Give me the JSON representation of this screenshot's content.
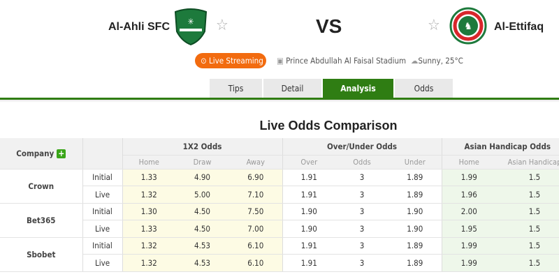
{
  "match": {
    "home_team": "Al-Ahli SFC",
    "away_team": "Al-Ettifaq",
    "vs": "VS",
    "live_label": "Live Streaming",
    "stadium": "Prince Abdullah Al Faisal Stadium",
    "weather": "Sunny, 25°C",
    "accent": "#2f7d13",
    "live_color": "#f26b0f"
  },
  "tabs": [
    {
      "label": "Tips"
    },
    {
      "label": "Detail"
    },
    {
      "label": "Analysis",
      "active": true
    },
    {
      "label": "Odds"
    }
  ],
  "section_title": "Live Odds Comparison",
  "table": {
    "company_label": "Company",
    "groups": [
      "1X2 Odds",
      "Over/Under Odds",
      "Asian Handicap Odds"
    ],
    "subheaders": [
      "Home",
      "Draw",
      "Away",
      "Over",
      "Odds",
      "Under",
      "Home",
      "Asian Handicap"
    ],
    "companies": [
      {
        "name": "Crown",
        "rows": [
          {
            "type": "Initial",
            "v": [
              "1.33",
              "4.90",
              "6.90",
              "1.91",
              "3",
              "1.89",
              "1.99",
              "1.5"
            ]
          },
          {
            "type": "Live",
            "v": [
              "1.32",
              "5.00",
              "7.10",
              "1.91",
              "3",
              "1.89",
              "1.96",
              "1.5"
            ]
          }
        ]
      },
      {
        "name": "Bet365",
        "rows": [
          {
            "type": "Initial",
            "v": [
              "1.30",
              "4.50",
              "7.50",
              "1.90",
              "3",
              "1.90",
              "2.00",
              "1.5"
            ]
          },
          {
            "type": "Live",
            "v": [
              "1.33",
              "4.50",
              "7.00",
              "1.90",
              "3",
              "1.90",
              "1.95",
              "1.5"
            ]
          }
        ]
      },
      {
        "name": "Sbobet",
        "rows": [
          {
            "type": "Initial",
            "v": [
              "1.32",
              "4.53",
              "6.10",
              "1.91",
              "3",
              "1.89",
              "1.99",
              "1.5"
            ]
          },
          {
            "type": "Live",
            "v": [
              "1.32",
              "4.53",
              "6.10",
              "1.91",
              "3",
              "1.89",
              "1.99",
              "1.5"
            ]
          }
        ]
      }
    ]
  }
}
